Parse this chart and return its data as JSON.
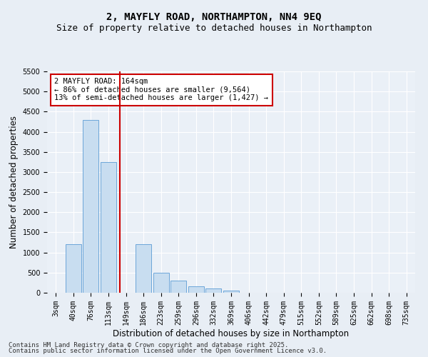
{
  "title": "2, MAYFLY ROAD, NORTHAMPTON, NN4 9EQ",
  "subtitle": "Size of property relative to detached houses in Northampton",
  "xlabel": "Distribution of detached houses by size in Northampton",
  "ylabel": "Number of detached properties",
  "categories": [
    "3sqm",
    "40sqm",
    "76sqm",
    "113sqm",
    "149sqm",
    "186sqm",
    "223sqm",
    "259sqm",
    "296sqm",
    "332sqm",
    "369sqm",
    "406sqm",
    "442sqm",
    "479sqm",
    "515sqm",
    "552sqm",
    "589sqm",
    "625sqm",
    "662sqm",
    "698sqm",
    "735sqm"
  ],
  "values": [
    0,
    1200,
    4300,
    3250,
    0,
    1200,
    490,
    300,
    160,
    100,
    60,
    0,
    0,
    0,
    0,
    0,
    0,
    0,
    0,
    0,
    0
  ],
  "bar_color": "#c8ddf0",
  "bar_edge_color": "#5b9bd5",
  "vline_color": "#cc0000",
  "vline_x_index": 4.15,
  "annotation_text": "2 MAYFLY ROAD: 164sqm\n← 86% of detached houses are smaller (9,564)\n13% of semi-detached houses are larger (1,427) →",
  "annotation_box_color": "#cc0000",
  "ylim": [
    0,
    5500
  ],
  "yticks": [
    0,
    500,
    1000,
    1500,
    2000,
    2500,
    3000,
    3500,
    4000,
    4500,
    5000,
    5500
  ],
  "bg_color": "#e8eef5",
  "plot_bg_color": "#eaf0f7",
  "footer_line1": "Contains HM Land Registry data © Crown copyright and database right 2025.",
  "footer_line2": "Contains public sector information licensed under the Open Government Licence v3.0.",
  "title_fontsize": 10,
  "subtitle_fontsize": 9,
  "axis_label_fontsize": 8.5,
  "tick_fontsize": 7,
  "annotation_fontsize": 7.5,
  "footer_fontsize": 6.5
}
